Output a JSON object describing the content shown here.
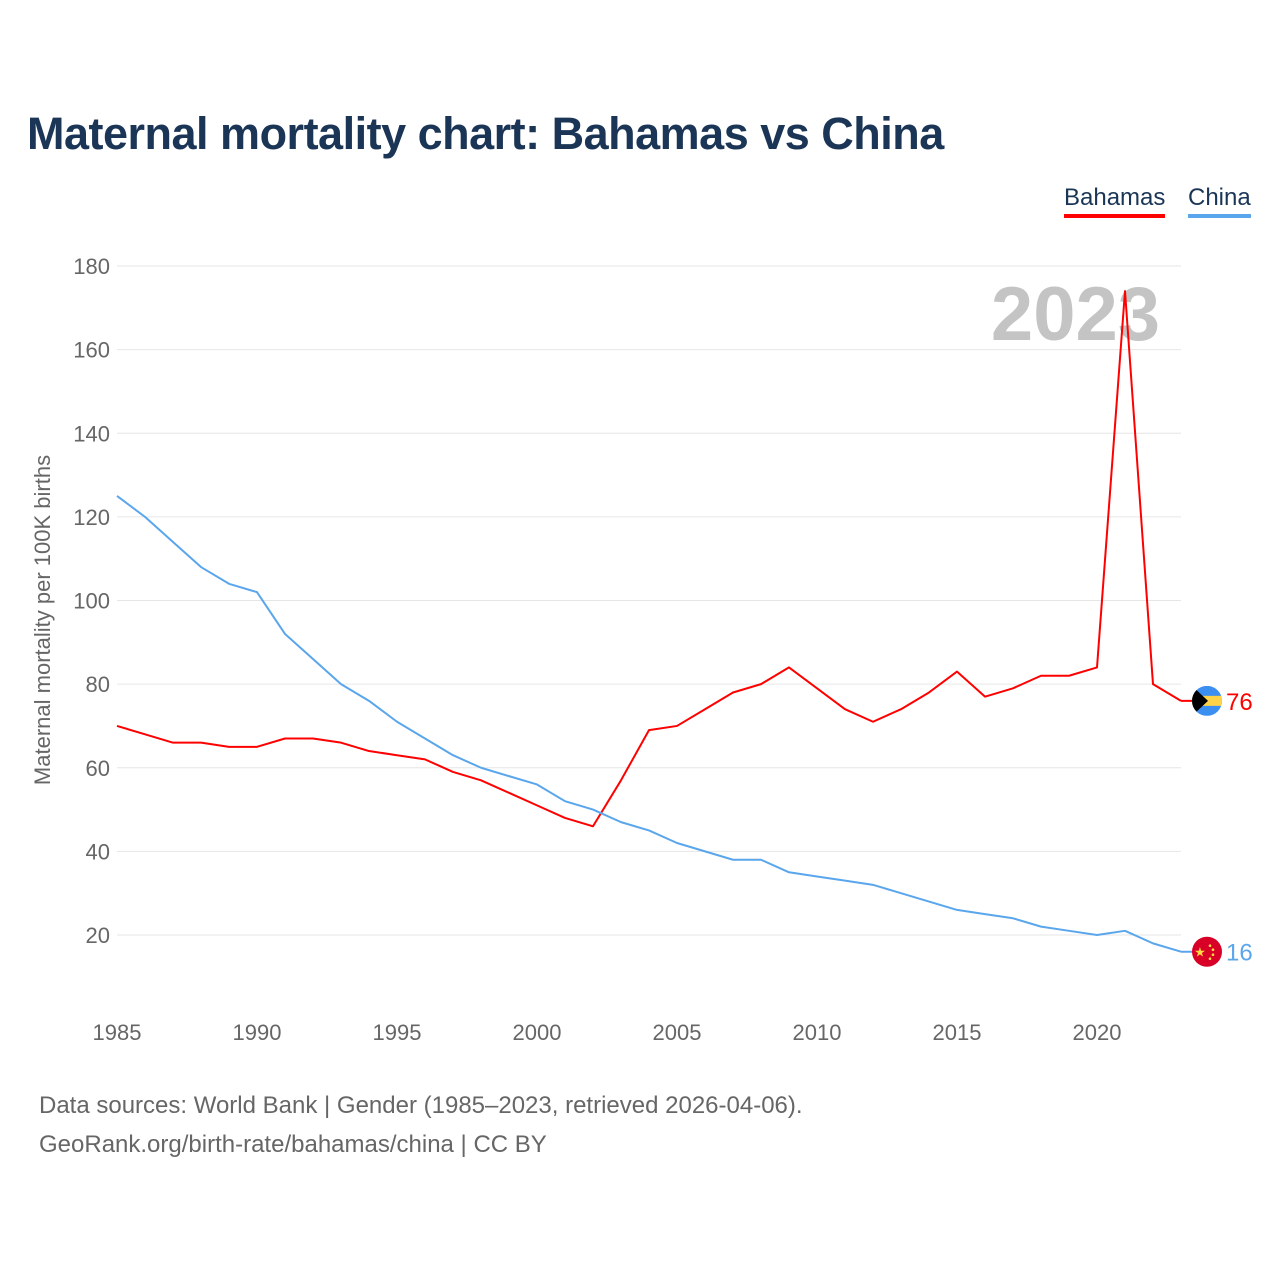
{
  "chart_data": {
    "type": "line",
    "title": "Maternal mortality chart: Bahamas vs China",
    "xlabel": "",
    "ylabel": "Maternal mortality per 100K births",
    "xlim": [
      1985,
      2023
    ],
    "ylim": [
      10,
      180
    ],
    "x_ticks": [
      1985,
      1990,
      1995,
      2000,
      2005,
      2010,
      2015,
      2020
    ],
    "y_ticks": [
      20,
      40,
      60,
      80,
      100,
      120,
      140,
      160,
      180
    ],
    "grid": true,
    "legend_position": "top-right",
    "year_watermark": "2023",
    "x": [
      1985,
      1986,
      1987,
      1988,
      1989,
      1990,
      1991,
      1992,
      1993,
      1994,
      1995,
      1996,
      1997,
      1998,
      1999,
      2000,
      2001,
      2002,
      2003,
      2004,
      2005,
      2006,
      2007,
      2008,
      2009,
      2010,
      2011,
      2012,
      2013,
      2014,
      2015,
      2016,
      2017,
      2018,
      2019,
      2020,
      2021,
      2022,
      2023
    ],
    "series": [
      {
        "name": "Bahamas",
        "color": "#ff0000",
        "end_label": "76",
        "values": [
          70,
          68,
          66,
          66,
          65,
          65,
          67,
          67,
          66,
          64,
          63,
          62,
          59,
          57,
          54,
          51,
          48,
          46,
          57,
          69,
          70,
          74,
          78,
          80,
          84,
          79,
          74,
          71,
          74,
          78,
          83,
          77,
          79,
          82,
          82,
          84,
          174,
          80,
          76
        ]
      },
      {
        "name": "China",
        "color": "#5aa6ec",
        "end_label": "16",
        "values": [
          125,
          120,
          114,
          108,
          104,
          102,
          92,
          86,
          80,
          76,
          71,
          67,
          63,
          60,
          58,
          56,
          52,
          50,
          47,
          45,
          42,
          40,
          38,
          38,
          35,
          34,
          33,
          32,
          30,
          28,
          26,
          25,
          24,
          22,
          21,
          20,
          21,
          18,
          16
        ]
      }
    ]
  },
  "footer": {
    "line1": "Data sources: World Bank | Gender (1985–2023, retrieved 2026-04-06).",
    "line2": "GeoRank.org/birth-rate/bahamas/china | CC BY"
  }
}
